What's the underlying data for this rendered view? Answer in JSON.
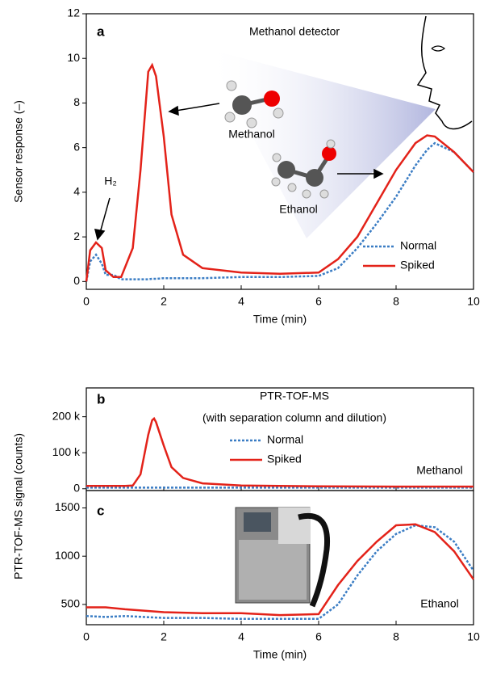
{
  "chart_data": [
    {
      "type": "line",
      "xlabel": "Time (min)",
      "ylabel": "Sensor response (–)",
      "xlim": [
        0,
        10
      ],
      "xticks": [
        0,
        2,
        4,
        6,
        8,
        10
      ],
      "ylim": [
        -0.35,
        12
      ],
      "yticks": [
        0,
        2,
        4,
        6,
        8,
        10,
        12
      ],
      "legend": "lower right",
      "annotations": [
        "a",
        "Methanol detector",
        "H₂",
        "Methanol",
        "Ethanol"
      ],
      "x": [
        0,
        0.1,
        0.25,
        0.4,
        0.5,
        0.7,
        0.9,
        1.2,
        1.4,
        1.6,
        1.7,
        1.8,
        2.0,
        2.2,
        2.5,
        3,
        4,
        5,
        6,
        6.5,
        7,
        7.5,
        8,
        8.5,
        8.8,
        9,
        9.5,
        10
      ],
      "series": [
        {
          "name": "Normal",
          "color": "#3b7dc4",
          "style": "dotted",
          "values": [
            0,
            0.9,
            1.2,
            0.8,
            0.3,
            0.3,
            0.1,
            0.1,
            0.1,
            0.1,
            0.12,
            0.12,
            0.15,
            0.15,
            0.15,
            0.15,
            0.2,
            0.2,
            0.25,
            0.6,
            1.5,
            2.6,
            3.8,
            5.2,
            5.9,
            6.2,
            5.8,
            4.9
          ]
        },
        {
          "name": "Spiked",
          "color": "#e32219",
          "style": "solid",
          "values": [
            0,
            1.4,
            1.75,
            1.5,
            0.5,
            0.2,
            0.2,
            1.5,
            5,
            9.4,
            9.7,
            9.2,
            6.5,
            3.0,
            1.2,
            0.6,
            0.4,
            0.35,
            0.4,
            1.0,
            2.0,
            3.5,
            5.0,
            6.2,
            6.55,
            6.5,
            5.8,
            4.9
          ]
        }
      ]
    },
    {
      "type": "line",
      "ylabel": "PTR-TOF-MS signal (counts)",
      "xtick_labels": false,
      "xlim": [
        0,
        10
      ],
      "xticks": [
        0,
        2,
        4,
        6,
        8,
        10
      ],
      "ylim": [
        -5000,
        280000
      ],
      "yticks": [
        0,
        {
          "value": 100000,
          "label": "100 k"
        },
        {
          "value": 200000,
          "label": "200 k"
        }
      ],
      "legend": "center",
      "annotations": [
        "b",
        "PTR-TOF-MS",
        "(with separation column and dilution)",
        "Methanol"
      ],
      "x": [
        0,
        1,
        1.2,
        1.4,
        1.6,
        1.7,
        1.75,
        1.8,
        2.0,
        2.2,
        2.5,
        3,
        4,
        6,
        8,
        10
      ],
      "series": [
        {
          "name": "Normal",
          "color": "#3b7dc4",
          "style": "dotted",
          "values": [
            3000,
            3000,
            3000,
            3000,
            3000,
            3000,
            3000,
            3000,
            3000,
            3000,
            3000,
            3000,
            3000,
            3000,
            3000,
            3000
          ]
        },
        {
          "name": "Spiked",
          "color": "#e32219",
          "style": "solid",
          "values": [
            8000,
            8000,
            9000,
            40000,
            150000,
            190000,
            195000,
            185000,
            120000,
            60000,
            30000,
            15000,
            9000,
            7000,
            6000,
            6000
          ]
        }
      ]
    },
    {
      "type": "line",
      "xlabel": "Time (min)",
      "xlim": [
        0,
        10
      ],
      "xticks": [
        0,
        2,
        4,
        6,
        8,
        10
      ],
      "ylim": [
        290,
        1680
      ],
      "yticks": [
        500,
        1000,
        1500
      ],
      "annotations": [
        "c",
        "Ethanol"
      ],
      "x": [
        0,
        0.5,
        1,
        2,
        3,
        4,
        5,
        6,
        6.5,
        7,
        7.5,
        8,
        8.5,
        9,
        9.5,
        10
      ],
      "series": [
        {
          "color": "#3b7dc4",
          "style": "dotted",
          "values": [
            380,
            370,
            380,
            360,
            360,
            350,
            350,
            350,
            500,
            800,
            1050,
            1230,
            1320,
            1300,
            1150,
            850
          ]
        },
        {
          "color": "#e32219",
          "style": "solid",
          "values": [
            470,
            470,
            450,
            420,
            410,
            410,
            390,
            400,
            700,
            950,
            1150,
            1320,
            1330,
            1250,
            1050,
            760
          ]
        }
      ]
    }
  ]
}
